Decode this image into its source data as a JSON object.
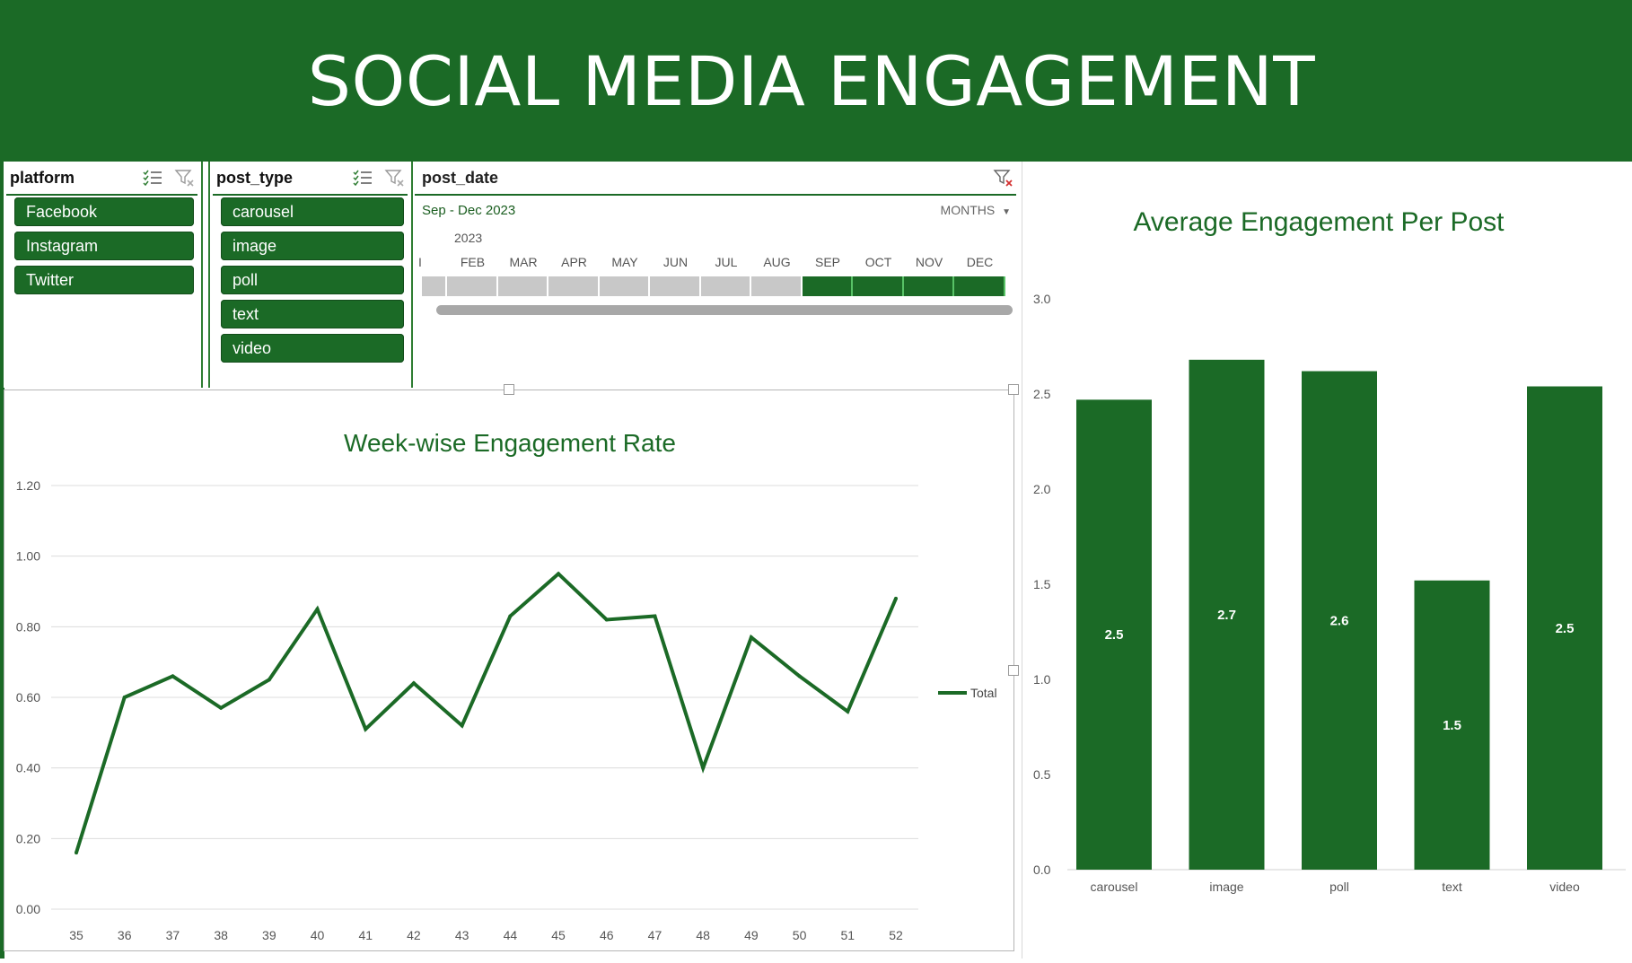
{
  "header": {
    "title": "SOCIAL MEDIA ENGAGEMENT"
  },
  "slicers": {
    "platform": {
      "title": "platform",
      "items": [
        "Facebook",
        "Instagram",
        "Twitter"
      ]
    },
    "post_type": {
      "title": "post_type",
      "items": [
        "carousel",
        "image",
        "poll",
        "text",
        "video"
      ]
    }
  },
  "timeline": {
    "title": "post_date",
    "range_label": "Sep - Dec 2023",
    "level": "MONTHS",
    "year": "2023",
    "months": [
      "I",
      "FEB",
      "MAR",
      "APR",
      "MAY",
      "JUN",
      "JUL",
      "AUG",
      "SEP",
      "OCT",
      "NOV",
      "DEC"
    ],
    "selected_months": [
      "SEP",
      "OCT",
      "NOV",
      "DEC"
    ]
  },
  "chart_data": [
    {
      "type": "line",
      "title": "Week-wise Engagement Rate",
      "x": [
        "35",
        "36",
        "37",
        "38",
        "39",
        "40",
        "41",
        "42",
        "43",
        "44",
        "45",
        "46",
        "47",
        "48",
        "49",
        "50",
        "51",
        "52"
      ],
      "series": [
        {
          "name": "Total",
          "values": [
            0.16,
            0.6,
            0.66,
            0.57,
            0.65,
            0.85,
            0.51,
            0.64,
            0.52,
            0.83,
            0.95,
            0.82,
            0.83,
            0.4,
            0.77,
            0.66,
            0.56,
            0.88
          ]
        }
      ],
      "ylim": [
        0,
        1.2
      ],
      "yticks": [
        "0.00",
        "0.20",
        "0.40",
        "0.60",
        "0.80",
        "1.00",
        "1.20"
      ],
      "grid": true,
      "legend": "right",
      "color": "#1b6a26"
    },
    {
      "type": "bar",
      "title": "Average Engagement Per Post",
      "categories": [
        "carousel",
        "image",
        "poll",
        "text",
        "video"
      ],
      "values": [
        2.47,
        2.68,
        2.62,
        1.52,
        2.54
      ],
      "data_labels": [
        "2.5",
        "2.7",
        "2.6",
        "1.5",
        "2.5"
      ],
      "ylim": [
        0,
        3.0
      ],
      "yticks": [
        "0.0",
        "0.5",
        "1.0",
        "1.5",
        "2.0",
        "2.5",
        "3.0"
      ],
      "color": "#1b6a26"
    }
  ]
}
